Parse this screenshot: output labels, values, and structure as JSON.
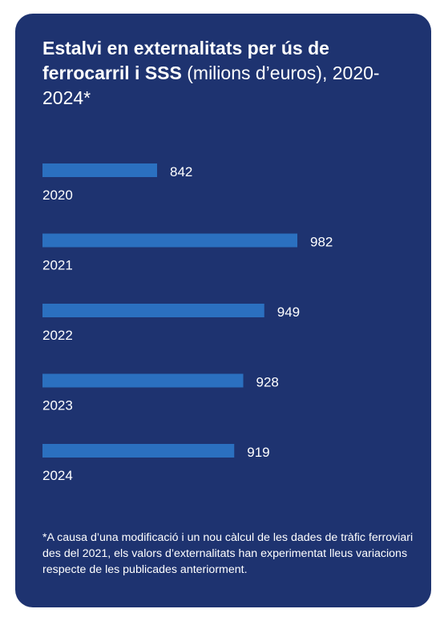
{
  "colors": {
    "card_background": "#1e3370",
    "bar": "#2b70c0",
    "text": "#ffffff"
  },
  "title": {
    "bold": "Estalvi en externalitats per ús de ferrocarril i SSS",
    "regular": " (milions d’euros), 2020-2024*"
  },
  "footnote": "*A causa d’una modificació i un nou càlcul de les dades de tràfic ferroviari des del 2021, els valors d’externalitats han experimentat lleus variacions respecte de les publicades anteriorment.",
  "chart_data": {
    "type": "bar",
    "orientation": "horizontal",
    "categories": [
      "2020",
      "2021",
      "2022",
      "2023",
      "2024"
    ],
    "values": [
      842,
      982,
      949,
      928,
      919
    ],
    "value_labels": [
      "842",
      "982",
      "949",
      "928",
      "919"
    ],
    "title": "Estalvi en externalitats per ús de ferrocarril i SSS (milions d’euros), 2020-2024*",
    "xlabel": "",
    "ylabel": "",
    "unit": "milions d’euros",
    "axis_visible": false,
    "grid": false,
    "legend": "none"
  }
}
